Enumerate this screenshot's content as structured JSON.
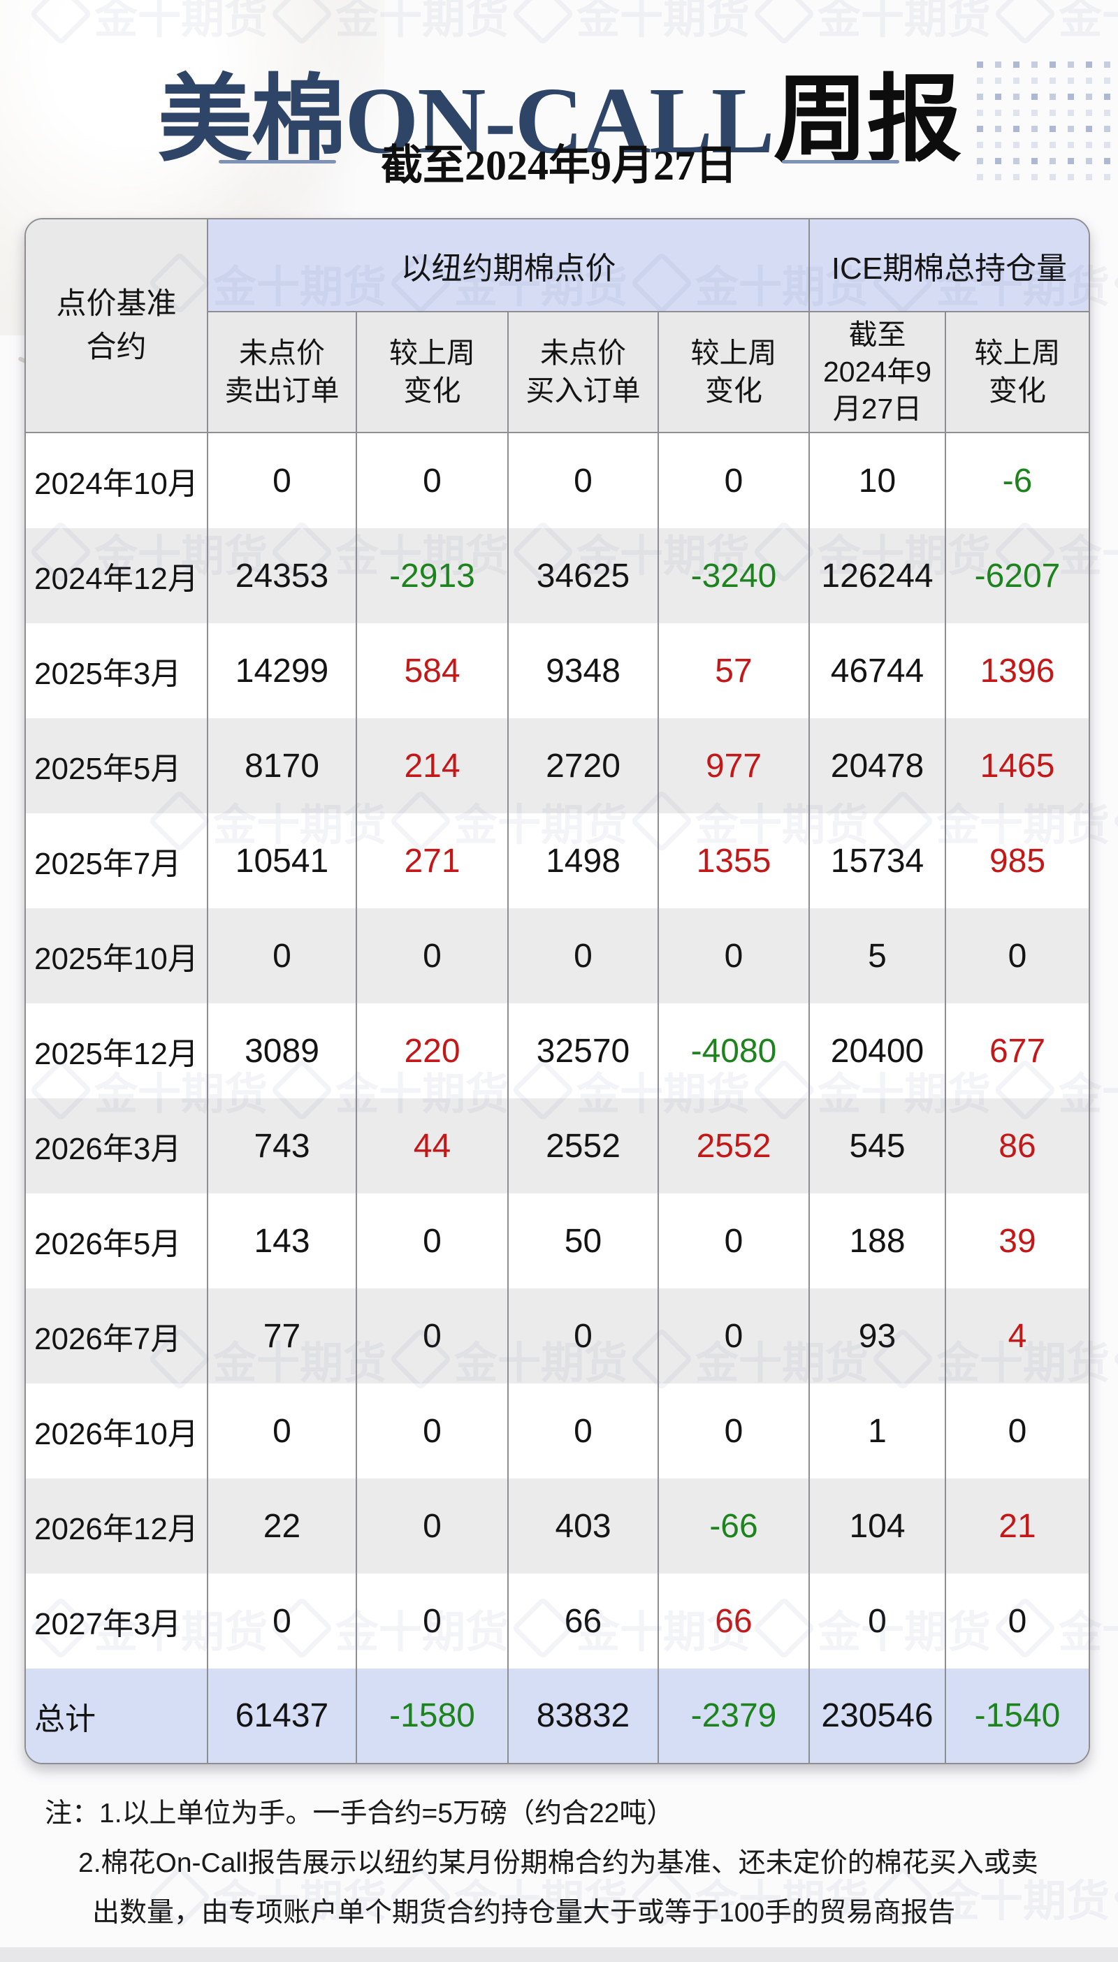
{
  "title": {
    "highlight": "美棉ON-CALL",
    "rest": "周报",
    "subtitle": "截至2024年9月27日"
  },
  "watermark": {
    "text": "金十期货",
    "logo": "jin10-diamond"
  },
  "table": {
    "corner_header": "点价基准\n合约",
    "groups": [
      "以纽约期棉点价",
      "ICE期棉总持仓量"
    ],
    "sub_headers": [
      "未点价\n卖出订单",
      "较上周\n变化",
      "未点价\n买入订单",
      "较上周\n变化",
      "截至\n2024年9\n月27日",
      "较上周\n变化"
    ],
    "rows": [
      {
        "label": "2024年10月",
        "cells": [
          {
            "t": "0"
          },
          {
            "t": "0"
          },
          {
            "t": "0"
          },
          {
            "t": "0"
          },
          {
            "t": "10"
          },
          {
            "t": "-6",
            "tone": "down"
          }
        ]
      },
      {
        "label": "2024年12月",
        "cells": [
          {
            "t": "24353"
          },
          {
            "t": "-2913",
            "tone": "down"
          },
          {
            "t": "34625"
          },
          {
            "t": "-3240",
            "tone": "down"
          },
          {
            "t": "126244"
          },
          {
            "t": "-6207",
            "tone": "down"
          }
        ]
      },
      {
        "label": "2025年3月",
        "cells": [
          {
            "t": "14299"
          },
          {
            "t": "584",
            "tone": "up"
          },
          {
            "t": "9348"
          },
          {
            "t": "57",
            "tone": "up"
          },
          {
            "t": "46744"
          },
          {
            "t": "1396",
            "tone": "up"
          }
        ]
      },
      {
        "label": "2025年5月",
        "cells": [
          {
            "t": "8170"
          },
          {
            "t": "214",
            "tone": "up"
          },
          {
            "t": "2720"
          },
          {
            "t": "977",
            "tone": "up"
          },
          {
            "t": "20478"
          },
          {
            "t": "1465",
            "tone": "up"
          }
        ]
      },
      {
        "label": "2025年7月",
        "cells": [
          {
            "t": "10541"
          },
          {
            "t": "271",
            "tone": "up"
          },
          {
            "t": "1498"
          },
          {
            "t": "1355",
            "tone": "up"
          },
          {
            "t": "15734"
          },
          {
            "t": "985",
            "tone": "up"
          }
        ]
      },
      {
        "label": "2025年10月",
        "cells": [
          {
            "t": "0"
          },
          {
            "t": "0"
          },
          {
            "t": "0"
          },
          {
            "t": "0"
          },
          {
            "t": "5"
          },
          {
            "t": "0"
          }
        ]
      },
      {
        "label": "2025年12月",
        "cells": [
          {
            "t": "3089"
          },
          {
            "t": "220",
            "tone": "up"
          },
          {
            "t": "32570"
          },
          {
            "t": "-4080",
            "tone": "down"
          },
          {
            "t": "20400"
          },
          {
            "t": "677",
            "tone": "up"
          }
        ]
      },
      {
        "label": "2026年3月",
        "cells": [
          {
            "t": "743"
          },
          {
            "t": "44",
            "tone": "up"
          },
          {
            "t": "2552"
          },
          {
            "t": "2552",
            "tone": "up"
          },
          {
            "t": "545"
          },
          {
            "t": "86",
            "tone": "up"
          }
        ]
      },
      {
        "label": "2026年5月",
        "cells": [
          {
            "t": "143"
          },
          {
            "t": "0"
          },
          {
            "t": "50"
          },
          {
            "t": "0"
          },
          {
            "t": "188"
          },
          {
            "t": "39",
            "tone": "up"
          }
        ]
      },
      {
        "label": "2026年7月",
        "cells": [
          {
            "t": "77"
          },
          {
            "t": "0"
          },
          {
            "t": "0"
          },
          {
            "t": "0"
          },
          {
            "t": "93"
          },
          {
            "t": "4",
            "tone": "up"
          }
        ]
      },
      {
        "label": "2026年10月",
        "cells": [
          {
            "t": "0"
          },
          {
            "t": "0"
          },
          {
            "t": "0"
          },
          {
            "t": "0"
          },
          {
            "t": "1"
          },
          {
            "t": "0"
          }
        ]
      },
      {
        "label": "2026年12月",
        "cells": [
          {
            "t": "22"
          },
          {
            "t": "0"
          },
          {
            "t": "403"
          },
          {
            "t": "-66",
            "tone": "down"
          },
          {
            "t": "104"
          },
          {
            "t": "21",
            "tone": "up"
          }
        ]
      },
      {
        "label": "2027年3月",
        "cells": [
          {
            "t": "0"
          },
          {
            "t": "0"
          },
          {
            "t": "66"
          },
          {
            "t": "66",
            "tone": "up"
          },
          {
            "t": "0"
          },
          {
            "t": "0"
          }
        ]
      }
    ],
    "total": {
      "label": "总计",
      "cells": [
        {
          "t": "61437"
        },
        {
          "t": "-1580",
          "tone": "down"
        },
        {
          "t": "83832"
        },
        {
          "t": "-2379",
          "tone": "down"
        },
        {
          "t": "230546"
        },
        {
          "t": "-1540",
          "tone": "down"
        }
      ]
    }
  },
  "notes": [
    "注：1.以上单位为手。一手合约=5万磅（约合22吨）",
    "2.棉花On-Call报告展示以纽约某月份期棉合约为基准、还未定价的棉花买入或卖",
    "出数量，由专项账户单个期货合约持仓量大于或等于100手的贸易商报告"
  ],
  "colors": {
    "up_red": "#c41717",
    "down_green": "#1d831d",
    "group_header_blue": "#d5dcf4",
    "total_row_blue": "#d6def6",
    "subheader_gray": "#e9e9ea",
    "row_alt_gray": "#ebebec",
    "border_gray": "#8e8e92",
    "title_navy": "#2e4568"
  }
}
